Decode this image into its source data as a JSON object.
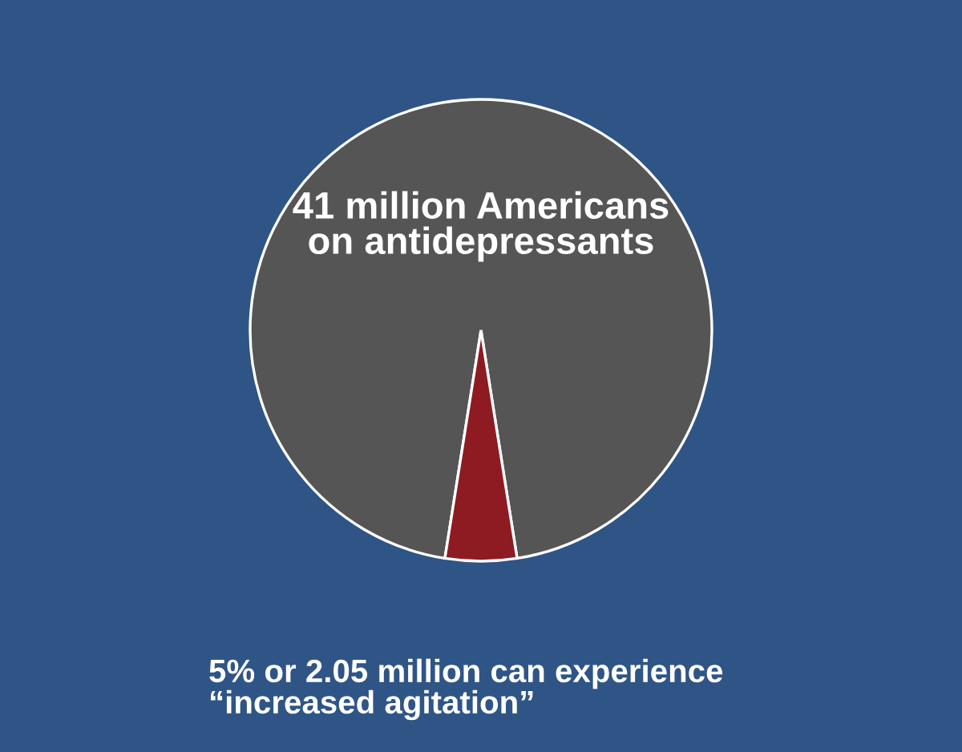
{
  "chart_data": {
    "type": "pie",
    "categories": [
      "41 million Americans\non antidepressants",
      "5% or 2.05 million can experience\n“increased agitation”"
    ],
    "values": [
      95,
      5
    ],
    "colors": [
      "#555555",
      "#8e1b22"
    ]
  }
}
